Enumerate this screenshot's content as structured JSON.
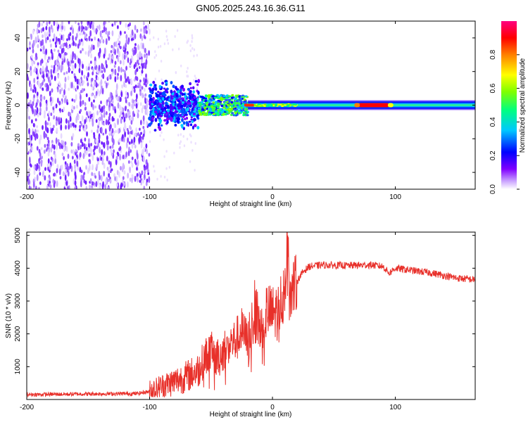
{
  "title": "GN05.2025.243.16.36.G11",
  "chart_data": [
    {
      "type": "heatmap",
      "name": "spectrogram",
      "xlabel": "Height of straight line (km)",
      "ylabel": "Frequency (Hz)",
      "xlim": [
        -200,
        165
      ],
      "ylim": [
        -50,
        50
      ],
      "xticks": [
        -200,
        -100,
        0,
        100
      ],
      "yticks": [
        -40,
        -20,
        0,
        20,
        40
      ],
      "xtick_labels": [
        "-200",
        "-100",
        "0",
        "100"
      ],
      "ytick_labels": [
        "-40",
        "-20",
        "0",
        "20",
        "40"
      ],
      "colorbar": {
        "label": "Normalized spectral amplitude",
        "range": [
          0,
          1
        ],
        "ticks": [
          0,
          0.2,
          0.4,
          0.6,
          0.8
        ],
        "tick_labels": [
          "0.0",
          "0.2",
          "0.4",
          "0.6",
          "0.8"
        ],
        "colors": [
          "#ffffff",
          "#c8a0ff",
          "#8000ff",
          "#0000ff",
          "#00c8ff",
          "#00ff80",
          "#80ff00",
          "#ffff00",
          "#ff8000",
          "#ff0000",
          "#ff0080"
        ]
      },
      "regions": [
        {
          "x_from": -200,
          "x_to": -100,
          "freq_spread": 50,
          "amplitude": 0.1,
          "description": "noise"
        },
        {
          "x_from": -100,
          "x_to": -60,
          "freq_spread": 12,
          "amplitude": 0.25
        },
        {
          "x_from": -60,
          "x_to": -20,
          "freq_spread": 6,
          "amplitude": 0.45
        },
        {
          "x_from": -20,
          "x_to": 165,
          "freq_spread": 3,
          "amplitude": 0.5
        },
        {
          "x_from": 70,
          "x_to": 95,
          "freq_spread": 1,
          "amplitude": 0.95
        }
      ]
    },
    {
      "type": "line",
      "name": "snr",
      "xlabel": "Height of straight line (km)",
      "ylabel": "SNR (10 * v/v)",
      "xlim": [
        -200,
        165
      ],
      "ylim": [
        0,
        5100
      ],
      "xticks": [
        -200,
        -100,
        0,
        100
      ],
      "yticks": [
        1000,
        2000,
        3000,
        4000,
        5000
      ],
      "xtick_labels": [
        "-200",
        "-100",
        "0",
        "100"
      ],
      "ytick_labels": [
        "1000",
        "2000",
        "3000",
        "4000",
        "5000"
      ],
      "color": "#e8302a",
      "series": [
        {
          "name": "SNR",
          "x": [
            -200,
            -150,
            -110,
            -100,
            -90,
            -80,
            -70,
            -60,
            -55,
            -50,
            -45,
            -40,
            -35,
            -30,
            -25,
            -20,
            -15,
            -10,
            -5,
            0,
            5,
            10,
            12,
            15,
            20,
            25,
            30,
            40,
            60,
            80,
            90,
            95,
            100,
            110,
            130,
            150,
            165
          ],
          "y": [
            150,
            170,
            180,
            250,
            400,
            550,
            700,
            900,
            1300,
            1500,
            1200,
            1500,
            1700,
            1800,
            2100,
            1700,
            2800,
            2200,
            2700,
            2600,
            2700,
            3500,
            4600,
            3300,
            3600,
            3900,
            4050,
            4100,
            4080,
            4100,
            4050,
            3850,
            4000,
            3950,
            3850,
            3700,
            3650
          ]
        }
      ]
    }
  ]
}
